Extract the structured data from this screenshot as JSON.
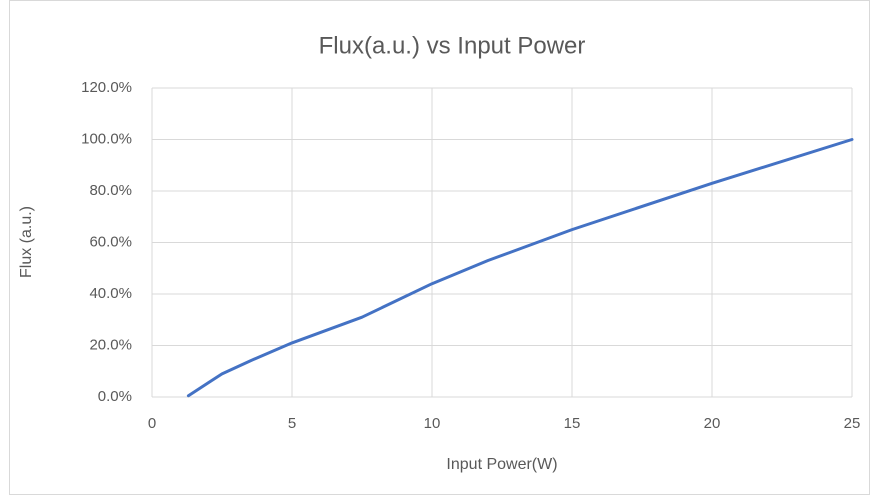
{
  "chart_data": {
    "type": "line",
    "title": "Flux(a.u.) vs Input Power",
    "x_label": "Input Power(W)",
    "y_label": "Flux (a.u.)",
    "x": [
      1.3,
      2.5,
      3.5,
      5,
      7.5,
      10,
      12,
      15,
      20,
      25
    ],
    "values": [
      0.5,
      9,
      14,
      21,
      31,
      44,
      53,
      65,
      83,
      100
    ],
    "color": "#4472c4",
    "xlim": [
      0,
      25
    ],
    "xticks": [
      0,
      5,
      10,
      15,
      20,
      25
    ],
    "ylim": [
      0,
      120
    ],
    "yticks": [
      {
        "value": 0,
        "label": "0.0%"
      },
      {
        "value": 20,
        "label": "20.0%"
      },
      {
        "value": 40,
        "label": "40.0%"
      },
      {
        "value": 60,
        "label": "60.0%"
      },
      {
        "value": 80,
        "label": "80.0%"
      },
      {
        "value": 100,
        "label": "100.0%"
      },
      {
        "value": 120,
        "label": "120.0%"
      }
    ],
    "grid": true
  }
}
